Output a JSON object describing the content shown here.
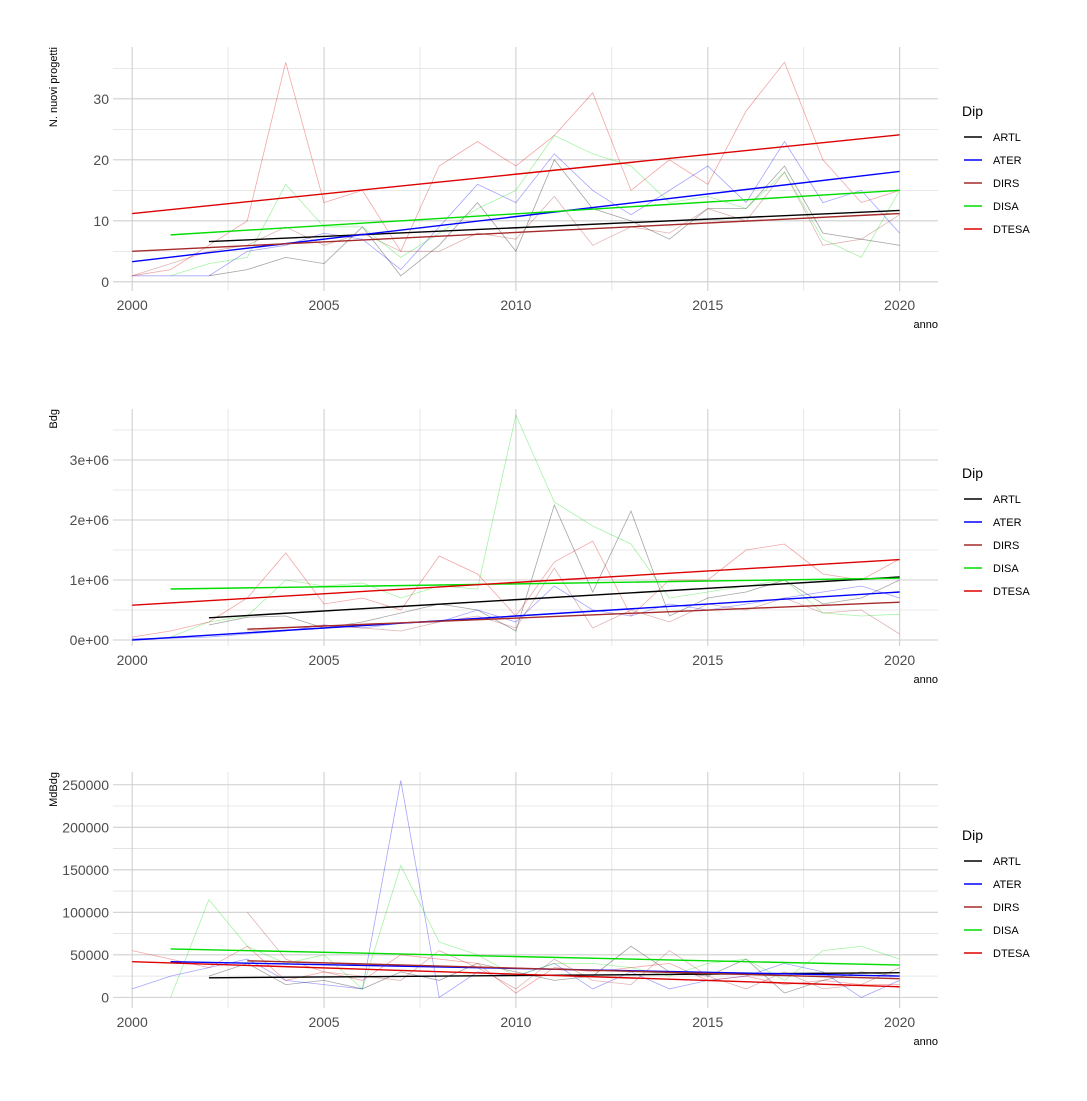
{
  "legend": {
    "title": "Dip",
    "items": [
      {
        "label": "ARTL",
        "color": "#000000"
      },
      {
        "label": "ATER",
        "color": "#0000ff"
      },
      {
        "label": "DIRS",
        "color": "#a52a2a"
      },
      {
        "label": "DISA",
        "color": "#00dd00"
      },
      {
        "label": "DTESA",
        "color": "#dd0000"
      }
    ]
  },
  "chart_data": [
    {
      "type": "line",
      "xlabel": "anno",
      "ylabel": "N. nuovi progetti",
      "xlim": [
        1999.5,
        2021
      ],
      "ylim": [
        -1.5,
        38.5
      ],
      "xticks": [
        2000,
        2005,
        2010,
        2015,
        2020
      ],
      "xtick_labels": [
        "2000",
        "2005",
        "2010",
        "2015",
        "2020"
      ],
      "yticks": [
        0,
        10,
        20,
        30
      ],
      "ytick_labels": [
        "0",
        "10",
        "20",
        "30"
      ],
      "grid": true,
      "series": [
        {
          "name": "ARTL",
          "x": [
            2002,
            2003,
            2004,
            2005,
            2006,
            2007,
            2008,
            2009,
            2010,
            2011,
            2012,
            2013,
            2014,
            2015,
            2016,
            2017,
            2018,
            2019,
            2020
          ],
          "values": [
            1,
            2,
            4,
            3,
            9,
            1,
            6,
            13,
            5,
            20,
            12,
            10,
            7,
            12,
            12,
            19,
            8,
            7,
            6
          ],
          "trend": [
            [
              2002,
              6.6
            ],
            [
              2020,
              11.7
            ]
          ]
        },
        {
          "name": "ATER",
          "x": [
            2000,
            2001,
            2002,
            2003,
            2004,
            2005,
            2006,
            2007,
            2008,
            2009,
            2010,
            2011,
            2012,
            2013,
            2014,
            2015,
            2016,
            2017,
            2018,
            2019,
            2020
          ],
          "values": [
            1,
            1,
            1,
            5,
            6,
            8,
            7,
            2,
            9,
            16,
            13,
            21,
            15,
            11,
            15,
            19,
            13,
            23,
            13,
            15,
            8
          ],
          "trend": [
            [
              2000,
              3.3
            ],
            [
              2020,
              18.1
            ]
          ]
        },
        {
          "name": "DIRS",
          "x": [
            2000,
            2001,
            2002,
            2003,
            2004,
            2005,
            2006,
            2007,
            2008,
            2009,
            2010,
            2011,
            2012,
            2013,
            2014,
            2015,
            2016,
            2017,
            2018,
            2019,
            2020
          ],
          "values": [
            1,
            3,
            5,
            6,
            9,
            6,
            8,
            5,
            5,
            8,
            7,
            14,
            6,
            9,
            8,
            12,
            10,
            18,
            6,
            7,
            11
          ],
          "trend": [
            [
              2000,
              5.0
            ],
            [
              2020,
              11.2
            ]
          ]
        },
        {
          "name": "DISA",
          "x": [
            2001,
            2002,
            2003,
            2004,
            2005,
            2006,
            2007,
            2008,
            2009,
            2010,
            2011,
            2012,
            2013,
            2014,
            2015,
            2016,
            2017,
            2018,
            2019,
            2020
          ],
          "values": [
            1,
            3,
            4,
            16,
            9,
            9,
            4,
            8,
            12,
            15,
            24,
            21,
            19,
            13,
            14,
            12,
            18,
            7,
            4,
            15
          ],
          "trend": [
            [
              2001,
              7.7
            ],
            [
              2020,
              15.0
            ]
          ]
        },
        {
          "name": "DTESA",
          "x": [
            2000,
            2001,
            2002,
            2003,
            2004,
            2005,
            2006,
            2007,
            2008,
            2009,
            2010,
            2011,
            2012,
            2013,
            2014,
            2015,
            2016,
            2017,
            2018,
            2019,
            2020
          ],
          "values": [
            1,
            2,
            6,
            10,
            36,
            13,
            15,
            5,
            19,
            23,
            19,
            24,
            31,
            15,
            20,
            16,
            28,
            36,
            20,
            13,
            15
          ],
          "trend": [
            [
              2000,
              11.2
            ],
            [
              2020,
              24.1
            ]
          ]
        }
      ]
    },
    {
      "type": "line",
      "xlabel": "anno",
      "ylabel": "Bdg",
      "xlim": [
        1999.5,
        2021
      ],
      "ylim": [
        -100000,
        3850000
      ],
      "xticks": [
        2000,
        2005,
        2010,
        2015,
        2020
      ],
      "xtick_labels": [
        "2000",
        "2005",
        "2010",
        "2015",
        "2020"
      ],
      "yticks": [
        0,
        1000000,
        2000000,
        3000000
      ],
      "ytick_labels": [
        "0e+00",
        "1e+06",
        "2e+06",
        "3e+06"
      ],
      "grid": true,
      "series": [
        {
          "name": "ARTL",
          "x": [
            2002,
            2003,
            2004,
            2005,
            2006,
            2007,
            2008,
            2009,
            2010,
            2011,
            2012,
            2013,
            2014,
            2015,
            2016,
            2017,
            2018,
            2019,
            2020
          ],
          "values": [
            250000,
            380000,
            400000,
            200000,
            300000,
            450000,
            600000,
            500000,
            150000,
            2250000,
            800000,
            2150000,
            400000,
            700000,
            800000,
            1000000,
            600000,
            700000,
            1000000
          ],
          "trend": [
            [
              2002,
              370000
            ],
            [
              2020,
              1050000
            ]
          ]
        },
        {
          "name": "ATER",
          "x": [
            2000,
            2001,
            2002,
            2003,
            2004,
            2005,
            2006,
            2007,
            2008,
            2009,
            2010,
            2011,
            2012,
            2013,
            2014,
            2015,
            2016,
            2017,
            2018,
            2019,
            2020
          ],
          "values": [
            20000,
            30000,
            50000,
            100000,
            150000,
            250000,
            200000,
            280000,
            300000,
            500000,
            300000,
            900000,
            500000,
            400000,
            600000,
            500000,
            600000,
            700000,
            800000,
            900000,
            700000
          ],
          "trend": [
            [
              2000,
              0
            ],
            [
              2020,
              800000
            ]
          ]
        },
        {
          "name": "DIRS",
          "x": [
            2003,
            2004,
            2005,
            2006,
            2007,
            2008,
            2009,
            2010,
            2011,
            2012,
            2013,
            2014,
            2015,
            2016,
            2017,
            2018,
            2019,
            2020
          ],
          "values": [
            150000,
            200000,
            250000,
            200000,
            150000,
            300000,
            400000,
            200000,
            1200000,
            200000,
            500000,
            300000,
            600000,
            500000,
            700000,
            450000,
            500000,
            100000
          ],
          "trend": [
            [
              2003,
              180000
            ],
            [
              2020,
              630000
            ]
          ]
        },
        {
          "name": "DISA",
          "x": [
            2001,
            2002,
            2003,
            2004,
            2005,
            2006,
            2007,
            2008,
            2009,
            2010,
            2011,
            2012,
            2013,
            2014,
            2015,
            2016,
            2017,
            2018,
            2019,
            2020
          ],
          "values": [
            50000,
            300000,
            400000,
            1000000,
            900000,
            950000,
            700000,
            900000,
            850000,
            3750000,
            2300000,
            1900000,
            1600000,
            700000,
            800000,
            900000,
            1000000,
            450000,
            400000,
            430000
          ],
          "trend": [
            [
              2001,
              850000
            ],
            [
              2020,
              1030000
            ]
          ]
        },
        {
          "name": "DTESA",
          "x": [
            2000,
            2001,
            2002,
            2003,
            2004,
            2005,
            2006,
            2007,
            2008,
            2009,
            2010,
            2011,
            2012,
            2013,
            2014,
            2015,
            2016,
            2017,
            2018,
            2019,
            2020
          ],
          "values": [
            50000,
            150000,
            300000,
            700000,
            1450000,
            600000,
            700000,
            500000,
            1400000,
            1100000,
            400000,
            1300000,
            1650000,
            400000,
            1000000,
            1000000,
            1500000,
            1600000,
            1100000,
            1000000,
            1350000
          ],
          "trend": [
            [
              2000,
              580000
            ],
            [
              2020,
              1340000
            ]
          ]
        }
      ]
    },
    {
      "type": "line",
      "xlabel": "anno",
      "ylabel": "MdBdg",
      "xlim": [
        1999.5,
        2021
      ],
      "ylim": [
        -12500,
        265000
      ],
      "xticks": [
        2000,
        2005,
        2010,
        2015,
        2020
      ],
      "xtick_labels": [
        "2000",
        "2005",
        "2010",
        "2015",
        "2020"
      ],
      "yticks": [
        0,
        50000,
        100000,
        150000,
        200000,
        250000
      ],
      "ytick_labels": [
        "0",
        "50000",
        "100000",
        "150000",
        "200000",
        "250000"
      ],
      "grid": true,
      "series": [
        {
          "name": "ARTL",
          "x": [
            2002,
            2003,
            2004,
            2005,
            2006,
            2007,
            2008,
            2009,
            2010,
            2011,
            2012,
            2013,
            2014,
            2015,
            2016,
            2017,
            2018,
            2019,
            2020
          ],
          "values": [
            25000,
            40000,
            15000,
            20000,
            10000,
            30000,
            20000,
            40000,
            30000,
            20000,
            25000,
            60000,
            30000,
            25000,
            45000,
            5000,
            20000,
            30000,
            25000
          ],
          "trend": [
            [
              2002,
              23000
            ],
            [
              2020,
              29000
            ]
          ]
        },
        {
          "name": "ATER",
          "x": [
            2000,
            2001,
            2002,
            2003,
            2004,
            2005,
            2006,
            2007,
            2008,
            2009,
            2010,
            2011,
            2012,
            2013,
            2014,
            2015,
            2016,
            2017,
            2018,
            2019,
            2020
          ],
          "values": [
            10000,
            25000,
            35000,
            45000,
            20000,
            15000,
            10000,
            255000,
            0,
            30000,
            25000,
            40000,
            10000,
            30000,
            10000,
            20000,
            25000,
            40000,
            30000,
            0,
            20000
          ],
          "trend": [
            [
              2001,
              42000
            ],
            [
              2020,
              25000
            ]
          ]
        },
        {
          "name": "DIRS",
          "x": [
            2003,
            2004,
            2005,
            2006,
            2007,
            2008,
            2009,
            2010,
            2011,
            2012,
            2013,
            2014,
            2015,
            2016,
            2017,
            2018,
            2019,
            2020
          ],
          "values": [
            100000,
            45000,
            30000,
            25000,
            20000,
            55000,
            35000,
            10000,
            45000,
            20000,
            15000,
            55000,
            25000,
            10000,
            30000,
            10000,
            15000,
            35000
          ],
          "trend": [
            [
              2003,
              43000
            ],
            [
              2020,
              22000
            ]
          ]
        },
        {
          "name": "DISA",
          "x": [
            2001,
            2002,
            2003,
            2004,
            2005,
            2006,
            2007,
            2008,
            2009,
            2010,
            2011,
            2012,
            2013,
            2014,
            2015,
            2016,
            2017,
            2018,
            2019,
            2020
          ],
          "values": [
            0,
            115000,
            60000,
            40000,
            50000,
            10000,
            155000,
            65000,
            50000,
            25000,
            40000,
            40000,
            35000,
            25000,
            40000,
            45000,
            20000,
            55000,
            60000,
            45000
          ],
          "trend": [
            [
              2001,
              57000
            ],
            [
              2020,
              38000
            ]
          ]
        },
        {
          "name": "DTESA",
          "x": [
            2000,
            2001,
            2002,
            2003,
            2004,
            2005,
            2006,
            2007,
            2008,
            2009,
            2010,
            2011,
            2012,
            2013,
            2014,
            2015,
            2016,
            2017,
            2018,
            2019,
            2020
          ],
          "values": [
            55000,
            45000,
            35000,
            60000,
            20000,
            30000,
            20000,
            50000,
            45000,
            40000,
            5000,
            35000,
            30000,
            35000,
            40000,
            20000,
            25000,
            15000,
            20000,
            15000,
            15000
          ],
          "trend": [
            [
              2000,
              42000
            ],
            [
              2020,
              12500
            ]
          ]
        }
      ]
    }
  ]
}
